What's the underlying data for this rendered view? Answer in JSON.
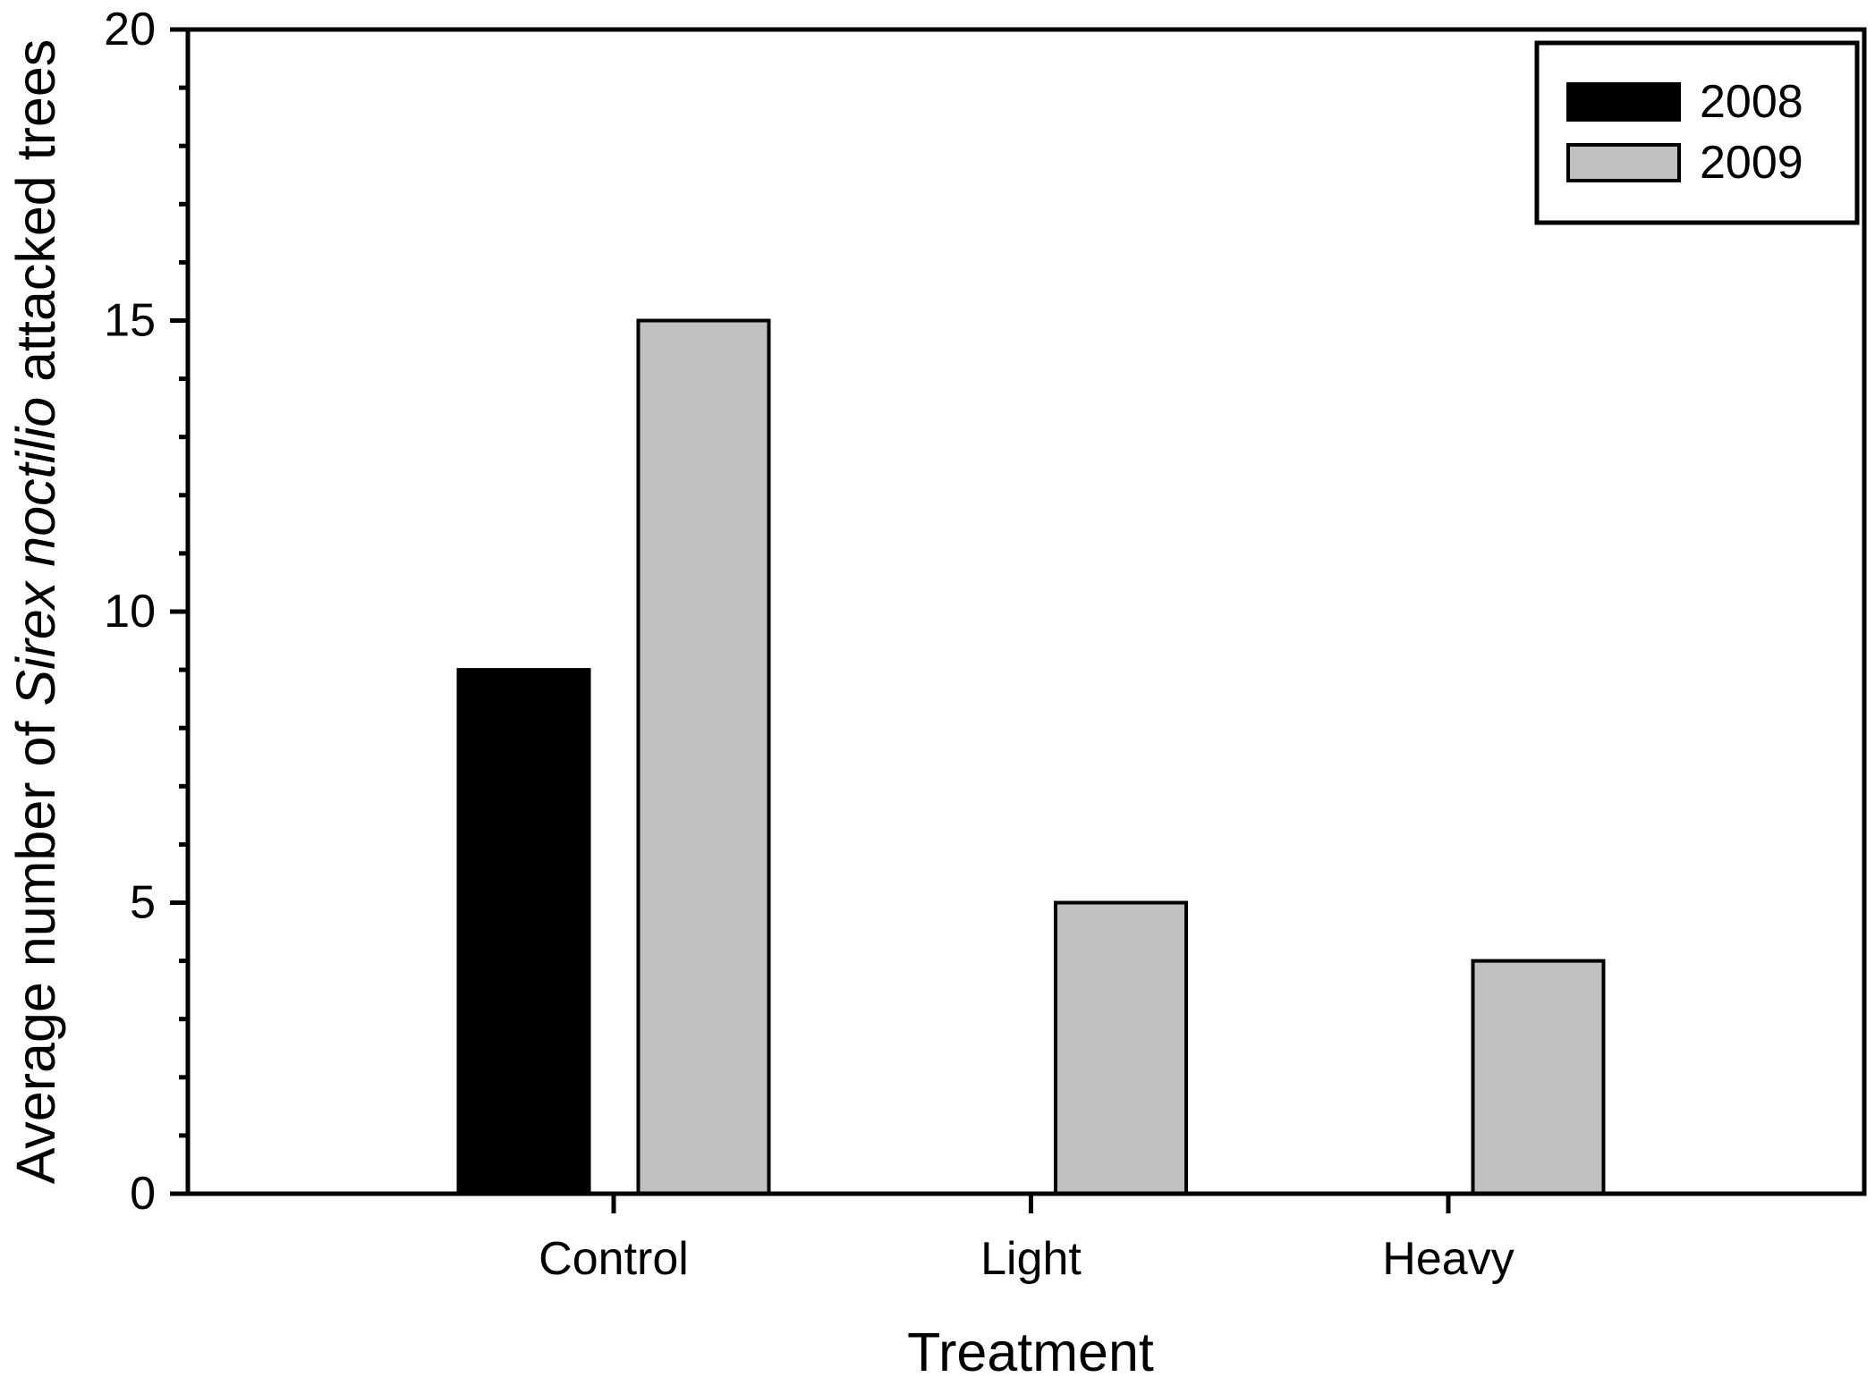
{
  "figure": {
    "background_color": "#ffffff",
    "frame_color": "#000000",
    "text_color": "#000000"
  },
  "chart_data": {
    "type": "bar",
    "title": "",
    "xlabel": "Treatment",
    "ylabel": "Average number of Sirex noctilio attacked trees",
    "ylabel_segments": [
      {
        "text": "Average number of ",
        "italic": false
      },
      {
        "text": "Sirex noctilio",
        "italic": true
      },
      {
        "text": " attacked trees",
        "italic": false
      }
    ],
    "categories": [
      "Control",
      "Light",
      "Heavy"
    ],
    "series": [
      {
        "name": "2008",
        "color": "#000000",
        "values": [
          9,
          0,
          0
        ]
      },
      {
        "name": "2009",
        "color": "#c0c0c0",
        "values": [
          15,
          5,
          4
        ]
      }
    ],
    "ylim": [
      0,
      20
    ],
    "y_major_ticks": [
      0,
      5,
      10,
      15,
      20
    ],
    "y_minor_step": 1,
    "grid": false,
    "legend_position": "top-right",
    "legend_entries": [
      "2008",
      "2009"
    ]
  }
}
